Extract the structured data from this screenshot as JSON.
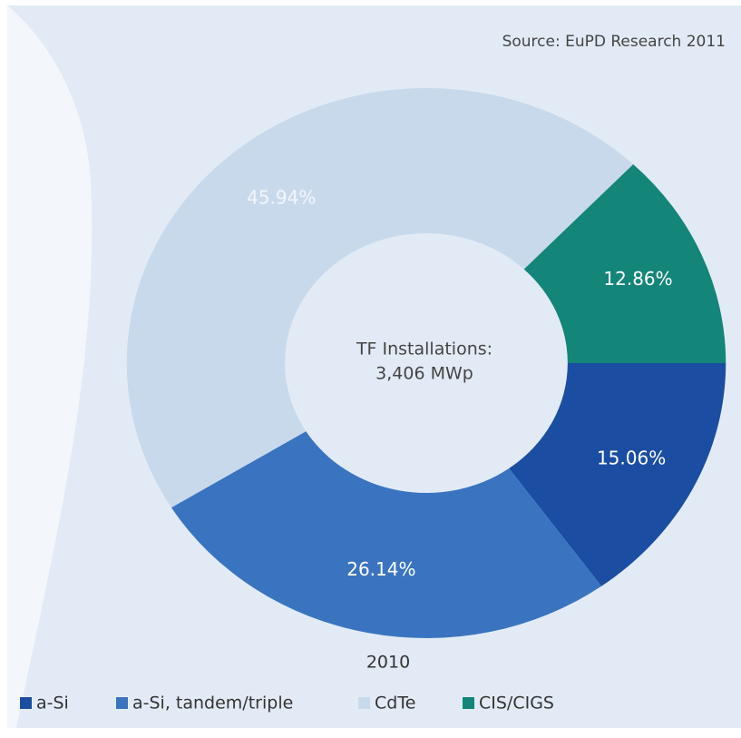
{
  "chart_data": {
    "type": "donut",
    "source": "Source: EuPD Research 2011",
    "center_label": [
      "TF Installations:",
      "3,406 MWp"
    ],
    "year_label": "2010",
    "categories": [
      "a-Si",
      "a-Si, tandem/triple",
      "CdTe",
      "CIS/CIGS"
    ],
    "values": [
      15.06,
      26.14,
      45.94,
      12.86
    ],
    "value_labels": [
      "15.06%",
      "26.14%",
      "45.94%",
      "12.86%"
    ],
    "colors": [
      "#1b4ea2",
      "#3a74c0",
      "#c9d9ec",
      "#138579"
    ],
    "legend": "bottom"
  }
}
